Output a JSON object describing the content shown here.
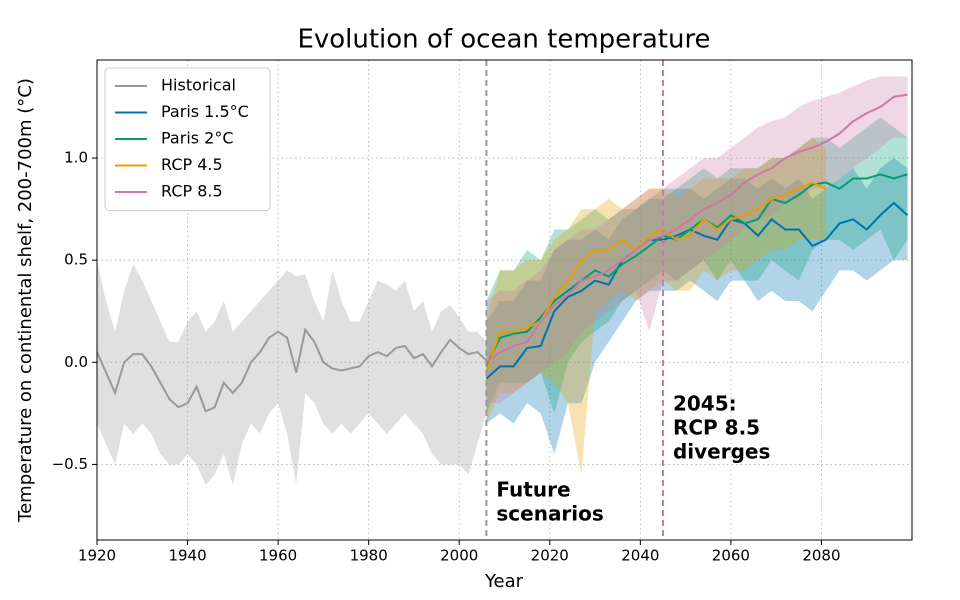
{
  "chart_data": {
    "type": "line",
    "title": "Evolution of ocean temperature",
    "xlabel": "Year",
    "ylabel": "Temperature on continental shelf, 200-700m (°C)",
    "xlim": [
      1920,
      2100
    ],
    "ylim": [
      -0.87,
      1.48
    ],
    "xticks": [
      1920,
      1940,
      1960,
      1980,
      2000,
      2020,
      2040,
      2060,
      2080
    ],
    "yticks": [
      {
        "value": -0.5,
        "label": "−0.5"
      },
      {
        "value": 0,
        "label": "0.0"
      },
      0.5,
      {
        "value": 1,
        "label": "1.0"
      }
    ],
    "grid": true,
    "legend": "upper left",
    "series": [
      {
        "name": "Historical",
        "color": "#999999",
        "x": [
          1920,
          1922,
          1924,
          1926,
          1928,
          1930,
          1932,
          1934,
          1936,
          1938,
          1940,
          1942,
          1944,
          1946,
          1948,
          1950,
          1952,
          1954,
          1956,
          1958,
          1960,
          1962,
          1964,
          1966,
          1968,
          1970,
          1972,
          1974,
          1976,
          1978,
          1980,
          1982,
          1984,
          1986,
          1988,
          1990,
          1992,
          1994,
          1996,
          1998,
          2000,
          2002,
          2004,
          2006
        ],
        "values": [
          0.05,
          -0.05,
          -0.15,
          0.0,
          0.04,
          0.04,
          -0.02,
          -0.1,
          -0.18,
          -0.22,
          -0.2,
          -0.12,
          -0.24,
          -0.22,
          -0.1,
          -0.15,
          -0.1,
          0.0,
          0.05,
          0.12,
          0.15,
          0.12,
          -0.05,
          0.16,
          0.1,
          0.0,
          -0.03,
          -0.04,
          -0.03,
          -0.02,
          0.03,
          0.05,
          0.03,
          0.07,
          0.08,
          0.02,
          0.04,
          -0.02,
          0.05,
          0.11,
          0.07,
          0.04,
          0.05,
          0.01
        ],
        "lower": [
          -0.3,
          -0.4,
          -0.5,
          -0.3,
          -0.35,
          -0.3,
          -0.35,
          -0.45,
          -0.5,
          -0.5,
          -0.45,
          -0.5,
          -0.6,
          -0.55,
          -0.45,
          -0.6,
          -0.4,
          -0.3,
          -0.35,
          -0.25,
          -0.2,
          -0.35,
          -0.6,
          -0.15,
          -0.2,
          -0.3,
          -0.35,
          -0.3,
          -0.35,
          -0.3,
          -0.25,
          -0.3,
          -0.35,
          -0.3,
          -0.25,
          -0.3,
          -0.35,
          -0.45,
          -0.5,
          -0.5,
          -0.5,
          -0.55,
          -0.4,
          -0.25
        ],
        "upper": [
          0.5,
          0.3,
          0.15,
          0.35,
          0.48,
          0.4,
          0.3,
          0.2,
          0.1,
          0.1,
          0.2,
          0.25,
          0.15,
          0.2,
          0.3,
          0.15,
          0.2,
          0.25,
          0.3,
          0.35,
          0.4,
          0.45,
          0.42,
          0.43,
          0.3,
          0.2,
          0.45,
          0.3,
          0.2,
          0.2,
          0.3,
          0.4,
          0.38,
          0.35,
          0.4,
          0.25,
          0.3,
          0.15,
          0.25,
          0.28,
          0.22,
          0.15,
          0.15,
          0.1
        ]
      },
      {
        "name": "Paris 1.5°C",
        "color": "#0072b2",
        "x": [
          2006,
          2009,
          2012,
          2015,
          2018,
          2021,
          2024,
          2027,
          2030,
          2033,
          2036,
          2039,
          2042,
          2045,
          2048,
          2051,
          2054,
          2057,
          2060,
          2063,
          2066,
          2069,
          2072,
          2075,
          2078,
          2081,
          2084,
          2087,
          2090,
          2093,
          2096,
          2099
        ],
        "values": [
          -0.08,
          -0.02,
          -0.02,
          0.07,
          0.08,
          0.25,
          0.32,
          0.35,
          0.4,
          0.38,
          0.5,
          0.55,
          0.6,
          0.6,
          0.62,
          0.65,
          0.62,
          0.6,
          0.7,
          0.68,
          0.62,
          0.7,
          0.65,
          0.65,
          0.57,
          0.6,
          0.68,
          0.7,
          0.65,
          0.72,
          0.78,
          0.72
        ],
        "lower": [
          -0.3,
          -0.25,
          -0.3,
          -0.2,
          -0.25,
          -0.45,
          -0.2,
          -0.2,
          0.0,
          0.1,
          0.2,
          0.3,
          0.35,
          0.35,
          0.35,
          0.4,
          0.35,
          0.3,
          0.4,
          0.4,
          0.3,
          0.35,
          0.3,
          0.3,
          0.25,
          0.35,
          0.45,
          0.45,
          0.4,
          0.45,
          0.5,
          0.5
        ],
        "upper": [
          0.2,
          0.3,
          0.3,
          0.4,
          0.4,
          0.55,
          0.6,
          0.6,
          0.65,
          0.6,
          0.7,
          0.75,
          0.8,
          0.8,
          0.85,
          0.85,
          0.8,
          0.85,
          0.9,
          0.9,
          0.85,
          0.9,
          0.85,
          0.9,
          0.8,
          0.85,
          0.9,
          0.95,
          0.85,
          0.95,
          1.0,
          0.95
        ]
      },
      {
        "name": "Paris 2°C",
        "color": "#009e73",
        "x": [
          2006,
          2009,
          2012,
          2015,
          2018,
          2021,
          2024,
          2027,
          2030,
          2033,
          2036,
          2039,
          2042,
          2045,
          2048,
          2051,
          2054,
          2057,
          2060,
          2063,
          2066,
          2069,
          2072,
          2075,
          2078,
          2081,
          2084,
          2087,
          2090,
          2093,
          2096,
          2099
        ],
        "values": [
          -0.02,
          0.12,
          0.14,
          0.15,
          0.22,
          0.3,
          0.35,
          0.4,
          0.45,
          0.42,
          0.48,
          0.52,
          0.57,
          0.62,
          0.6,
          0.65,
          0.7,
          0.66,
          0.72,
          0.68,
          0.7,
          0.8,
          0.78,
          0.82,
          0.87,
          0.88,
          0.85,
          0.9,
          0.9,
          0.92,
          0.9,
          0.92
        ],
        "lower": [
          -0.25,
          -0.1,
          -0.1,
          -0.1,
          -0.05,
          -0.25,
          0.0,
          0.1,
          0.15,
          0.2,
          0.3,
          0.35,
          0.4,
          0.45,
          0.4,
          0.45,
          0.5,
          0.4,
          0.5,
          0.4,
          0.4,
          0.5,
          0.45,
          0.4,
          0.55,
          0.6,
          0.6,
          0.55,
          0.6,
          0.65,
          0.5,
          0.6
        ],
        "upper": [
          0.3,
          0.45,
          0.45,
          0.55,
          0.5,
          0.65,
          0.65,
          0.7,
          0.75,
          0.7,
          0.75,
          0.75,
          0.8,
          0.85,
          0.85,
          0.9,
          0.95,
          0.9,
          0.95,
          0.95,
          0.95,
          1.0,
          1.0,
          1.05,
          1.1,
          1.1,
          1.05,
          1.1,
          1.15,
          1.2,
          1.15,
          1.1
        ]
      },
      {
        "name": "RCP 4.5",
        "color": "#e69f00",
        "x": [
          2006,
          2009,
          2012,
          2015,
          2018,
          2021,
          2024,
          2027,
          2030,
          2033,
          2036,
          2039,
          2042,
          2045,
          2048,
          2051,
          2054,
          2057,
          2060,
          2063,
          2066,
          2069,
          2072,
          2075,
          2078,
          2081
        ],
        "values": [
          -0.05,
          0.15,
          0.15,
          0.17,
          0.2,
          0.32,
          0.4,
          0.5,
          0.55,
          0.55,
          0.6,
          0.55,
          0.62,
          0.65,
          0.6,
          0.62,
          0.7,
          0.65,
          0.7,
          0.72,
          0.75,
          0.8,
          0.82,
          0.85,
          0.88,
          0.85
        ],
        "lower": [
          -0.3,
          -0.15,
          -0.15,
          -0.1,
          -0.05,
          -0.1,
          -0.2,
          -0.55,
          0.25,
          0.3,
          0.35,
          0.3,
          0.35,
          0.4,
          0.35,
          0.35,
          0.45,
          0.4,
          0.45,
          0.45,
          0.5,
          0.55,
          0.55,
          0.6,
          0.6,
          0.6
        ],
        "upper": [
          0.2,
          0.45,
          0.45,
          0.5,
          0.5,
          0.6,
          0.65,
          0.75,
          0.75,
          0.8,
          0.75,
          0.8,
          0.85,
          0.85,
          0.8,
          0.85,
          0.9,
          0.9,
          0.9,
          0.95,
          0.95,
          1.0,
          1.0,
          1.05,
          1.1,
          1.05
        ]
      },
      {
        "name": "RCP 8.5",
        "color": "#cc79a7",
        "x": [
          2006,
          2009,
          2012,
          2015,
          2018,
          2021,
          2024,
          2027,
          2030,
          2033,
          2036,
          2039,
          2042,
          2045,
          2048,
          2051,
          2054,
          2057,
          2060,
          2063,
          2066,
          2069,
          2072,
          2075,
          2078,
          2081,
          2084,
          2087,
          2090,
          2093,
          2096,
          2099
        ],
        "values": [
          0.0,
          0.05,
          0.08,
          0.1,
          0.2,
          0.28,
          0.33,
          0.4,
          0.42,
          0.45,
          0.5,
          0.55,
          0.6,
          0.62,
          0.65,
          0.7,
          0.75,
          0.78,
          0.82,
          0.88,
          0.92,
          0.95,
          1.0,
          1.03,
          1.05,
          1.08,
          1.12,
          1.18,
          1.22,
          1.25,
          1.3,
          1.31
        ],
        "lower": [
          -0.2,
          -0.2,
          -0.15,
          -0.1,
          -0.05,
          0.0,
          0.05,
          0.15,
          0.2,
          0.25,
          0.3,
          0.35,
          0.15,
          0.4,
          0.4,
          0.45,
          0.5,
          0.55,
          0.6,
          0.65,
          0.7,
          0.72,
          0.78,
          0.8,
          0.85,
          0.85,
          0.9,
          0.95,
          1.0,
          1.05,
          1.1,
          1.1
        ],
        "upper": [
          0.3,
          0.35,
          0.35,
          0.4,
          0.45,
          0.55,
          0.6,
          0.65,
          0.65,
          0.7,
          0.75,
          0.8,
          0.85,
          0.85,
          0.9,
          0.95,
          1.0,
          1.0,
          1.05,
          1.1,
          1.15,
          1.18,
          1.2,
          1.25,
          1.28,
          1.3,
          1.32,
          1.35,
          1.38,
          1.4,
          1.4,
          1.4
        ]
      }
    ],
    "annotations": [
      {
        "x": 2006,
        "color": "#999999",
        "lines": [
          "Future",
          "scenarios"
        ]
      },
      {
        "x": 2045,
        "color": "#cc79a7",
        "lines": [
          "2045:",
          "RCP 8.5",
          "diverges"
        ]
      }
    ]
  }
}
